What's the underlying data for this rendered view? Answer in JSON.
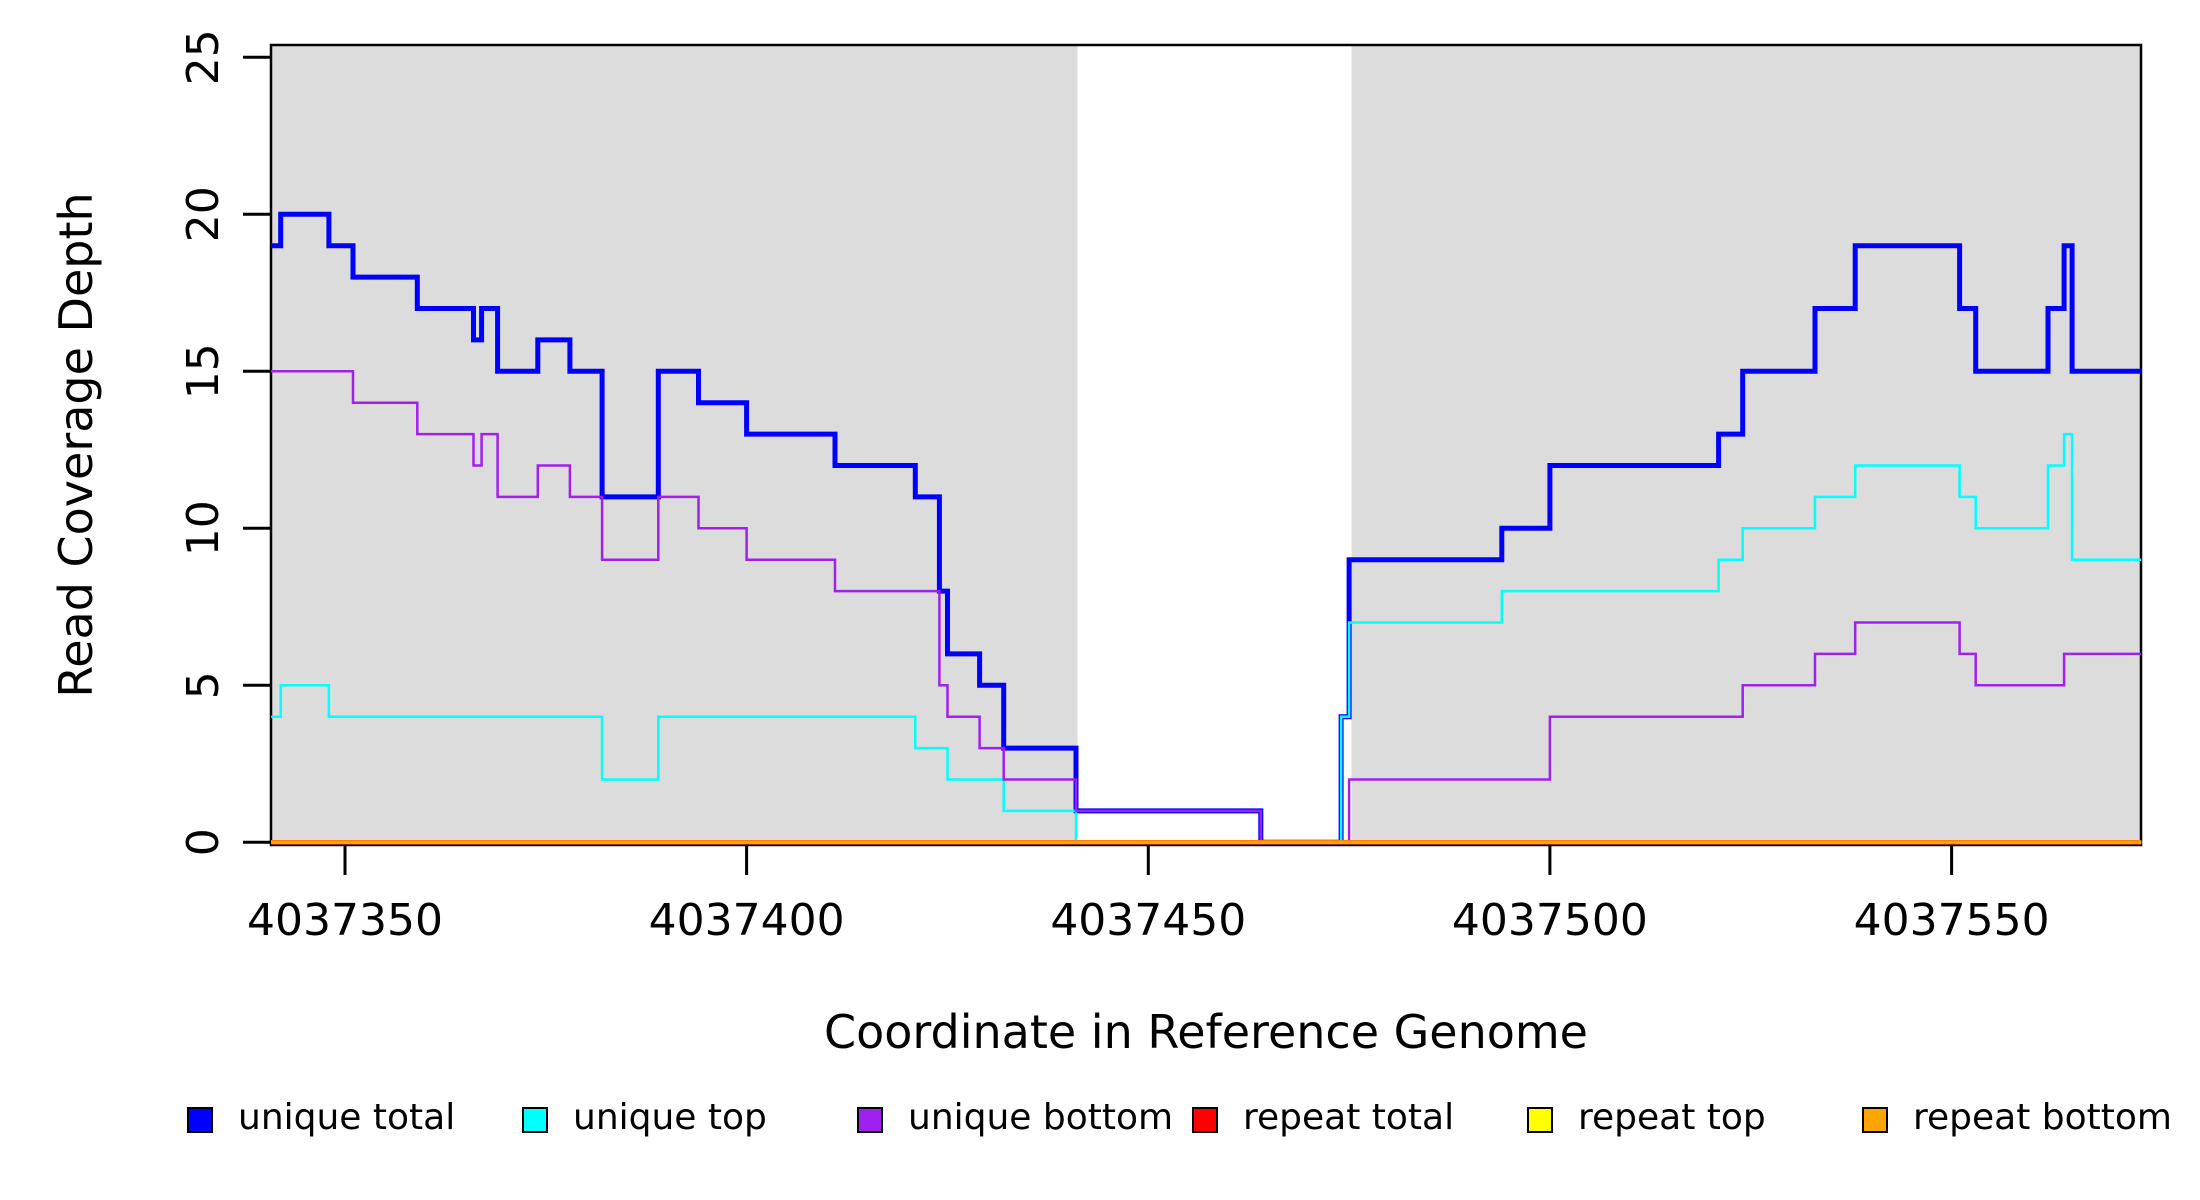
{
  "chart_data": {
    "type": "line",
    "subtype": "step-coverage",
    "title": "",
    "xlabel": "Coordinate in Reference Genome",
    "ylabel": "Read Coverage Depth",
    "grid": false,
    "x_range": [
      4037340.8,
      4037573.6
    ],
    "y_range": [
      0,
      25
    ],
    "x_ticks": [
      {
        "value": 4037350,
        "label": "4037350"
      },
      {
        "value": 4037400,
        "label": "4037400"
      },
      {
        "value": 4037450,
        "label": "4037450"
      },
      {
        "value": 4037500,
        "label": "4037500"
      },
      {
        "value": 4037550,
        "label": "4037550"
      }
    ],
    "y_ticks": [
      {
        "value": 0,
        "label": "0"
      },
      {
        "value": 5,
        "label": "5"
      },
      {
        "value": 10,
        "label": "10"
      },
      {
        "value": 15,
        "label": "15"
      },
      {
        "value": 20,
        "label": "20"
      },
      {
        "value": 25,
        "label": "25"
      }
    ],
    "shading": {
      "color": "#DCDCDC",
      "regions": [
        [
          4037340.8,
          4037441.2
        ],
        [
          4037475.3,
          4037573.6
        ]
      ],
      "white_gap": [
        4037441.2,
        4037475.3
      ]
    },
    "legend": {
      "position": "bottom",
      "items": [
        {
          "label": "unique total",
          "color": "#0000FF"
        },
        {
          "label": "unique top",
          "color": "#00FFFF"
        },
        {
          "label": "unique bottom",
          "color": "#A020F0"
        },
        {
          "label": "repeat total",
          "color": "#FF0000"
        },
        {
          "label": "repeat top",
          "color": "#FFFF00"
        },
        {
          "label": "repeat bottom",
          "color": "#FFA500"
        }
      ]
    },
    "series": [
      {
        "name": "unique total",
        "color": "#0000FF",
        "line_width": 5,
        "points": [
          [
            4037340.8,
            19
          ],
          [
            4037342,
            20
          ],
          [
            4037348,
            19
          ],
          [
            4037351,
            18
          ],
          [
            4037359,
            17
          ],
          [
            4037366,
            16
          ],
          [
            4037367,
            17
          ],
          [
            4037369,
            15
          ],
          [
            4037374,
            16
          ],
          [
            4037378,
            15
          ],
          [
            4037382,
            11
          ],
          [
            4037389,
            15
          ],
          [
            4037394,
            14
          ],
          [
            4037400,
            13
          ],
          [
            4037411,
            12
          ],
          [
            4037421,
            11
          ],
          [
            4037424,
            8
          ],
          [
            4037425,
            6
          ],
          [
            4037429,
            5
          ],
          [
            4037432,
            3
          ],
          [
            4037441,
            1
          ],
          [
            4037464,
            0
          ],
          [
            4037474,
            4
          ],
          [
            4037475,
            9
          ],
          [
            4037494,
            10
          ],
          [
            4037500,
            12
          ],
          [
            4037521,
            13
          ],
          [
            4037524,
            15
          ],
          [
            4037533,
            17
          ],
          [
            4037538,
            19
          ],
          [
            4037551,
            17
          ],
          [
            4037553,
            15
          ],
          [
            4037562,
            17
          ],
          [
            4037564,
            19
          ],
          [
            4037565,
            15
          ]
        ],
        "end_x": 4037573.6
      },
      {
        "name": "unique top",
        "color": "#00FFFF",
        "line_width": 2.5,
        "points": [
          [
            4037340.8,
            4
          ],
          [
            4037342,
            5
          ],
          [
            4037348,
            4
          ],
          [
            4037382,
            2
          ],
          [
            4037389,
            4
          ],
          [
            4037421,
            3
          ],
          [
            4037425,
            2
          ],
          [
            4037432,
            1
          ],
          [
            4037441,
            0
          ],
          [
            4037474,
            4
          ],
          [
            4037475,
            7
          ],
          [
            4037494,
            8
          ],
          [
            4037521,
            9
          ],
          [
            4037524,
            10
          ],
          [
            4037533,
            11
          ],
          [
            4037538,
            12
          ],
          [
            4037551,
            11
          ],
          [
            4037553,
            10
          ],
          [
            4037562,
            12
          ],
          [
            4037564,
            13
          ],
          [
            4037565,
            9
          ]
        ],
        "end_x": 4037573.6
      },
      {
        "name": "unique bottom",
        "color": "#A020F0",
        "line_width": 2.5,
        "points": [
          [
            4037340.8,
            15
          ],
          [
            4037351,
            14
          ],
          [
            4037359,
            13
          ],
          [
            4037366,
            12
          ],
          [
            4037367,
            13
          ],
          [
            4037369,
            11
          ],
          [
            4037374,
            12
          ],
          [
            4037378,
            11
          ],
          [
            4037382,
            9
          ],
          [
            4037389,
            11
          ],
          [
            4037394,
            10
          ],
          [
            4037400,
            9
          ],
          [
            4037411,
            8
          ],
          [
            4037424,
            5
          ],
          [
            4037425,
            4
          ],
          [
            4037429,
            3
          ],
          [
            4037432,
            2
          ],
          [
            4037441,
            1
          ],
          [
            4037464,
            0
          ],
          [
            4037475,
            2
          ],
          [
            4037500,
            4
          ],
          [
            4037524,
            5
          ],
          [
            4037533,
            6
          ],
          [
            4037538,
            7
          ],
          [
            4037551,
            6
          ],
          [
            4037553,
            5
          ],
          [
            4037564,
            6
          ]
        ],
        "end_x": 4037573.6
      },
      {
        "name": "repeat total",
        "color": "#FF0000",
        "line_width": 4.5,
        "points": [
          [
            4037340.8,
            0
          ]
        ],
        "end_x": 4037573.6
      },
      {
        "name": "repeat top",
        "color": "#FFFF00",
        "line_width": 2.5,
        "points": [
          [
            4037340.8,
            0
          ]
        ],
        "end_x": 4037573.6
      },
      {
        "name": "repeat bottom",
        "color": "#FFA500",
        "line_width": 4,
        "points": [
          [
            4037340.8,
            0
          ]
        ],
        "end_x": 4037573.6
      }
    ]
  }
}
